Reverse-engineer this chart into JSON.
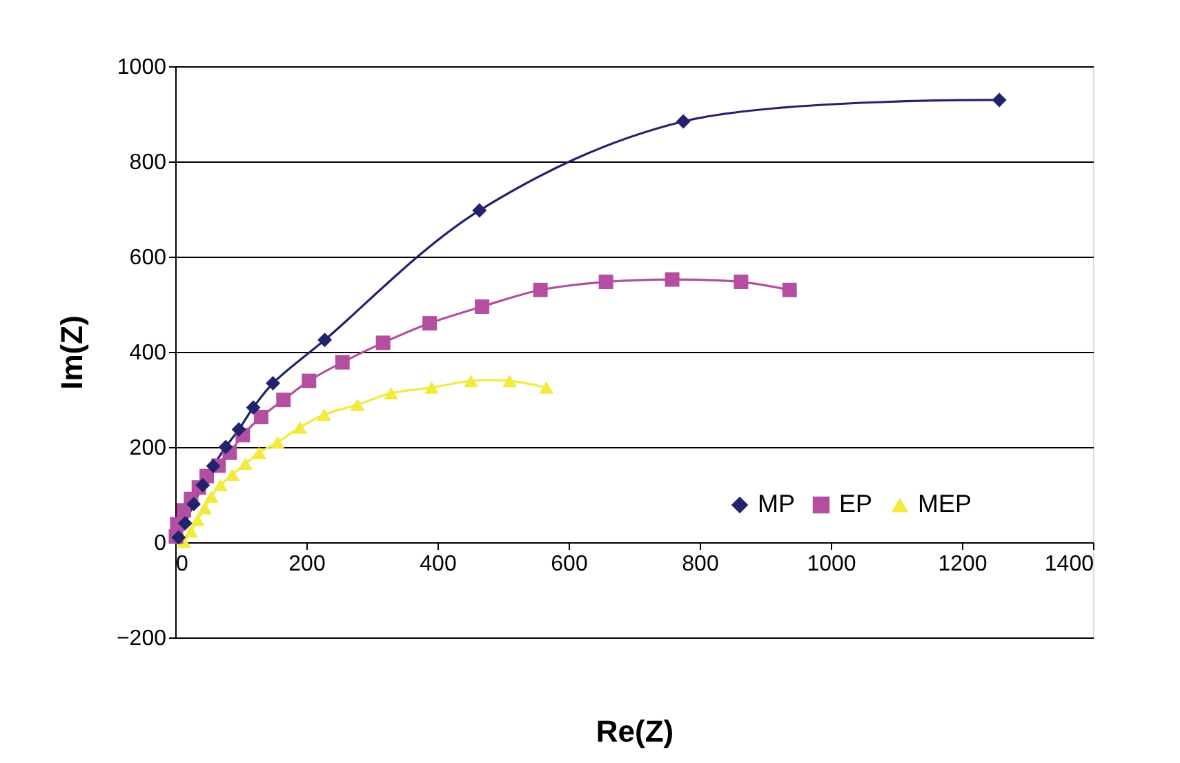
{
  "chart_data": {
    "type": "line",
    "xlabel": "Re(Z)",
    "ylabel": "Im(Z)",
    "xlim": [
      0,
      1400
    ],
    "xticks": [
      0,
      200,
      400,
      600,
      800,
      1000,
      1200,
      1400
    ],
    "ylim": [
      -200,
      1000
    ],
    "yticks": [
      -200,
      0,
      200,
      400,
      600,
      800,
      1000
    ],
    "grid": "y",
    "legend": "bottom right",
    "line_style": "solid",
    "series": [
      {
        "name": "MP",
        "color": "#22226e",
        "marker": "diamond",
        "x": [
          5,
          15,
          28,
          42,
          58,
          77,
          97,
          119,
          149,
          228,
          464,
          775,
          1257
        ],
        "values": [
          10,
          40,
          80,
          120,
          160,
          200,
          237,
          283,
          334,
          425,
          697,
          884,
          929
        ]
      },
      {
        "name": "EP",
        "color": "#b44ea0",
        "marker": "square",
        "x": [
          1,
          3,
          13,
          24,
          36,
          48,
          66,
          83,
          103,
          131,
          165,
          204,
          255,
          317,
          388,
          468,
          557,
          657,
          758,
          863,
          937
        ],
        "values": [
          12,
          38,
          67,
          91,
          115,
          139,
          161,
          188,
          225,
          263,
          299,
          339,
          378,
          419,
          460,
          495,
          530,
          547,
          552,
          547,
          530
        ]
      },
      {
        "name": "MEP",
        "color": "#f0eb3c",
        "marker": "triangle",
        "x": [
          13,
          24,
          34,
          45,
          55,
          69,
          87,
          107,
          128,
          156,
          190,
          227,
          278,
          329,
          391,
          451,
          510,
          566
        ],
        "values": [
          1,
          23,
          47,
          72,
          96,
          120,
          142,
          165,
          188,
          210,
          241,
          268,
          289,
          313,
          325,
          339,
          339,
          325
        ]
      }
    ]
  }
}
